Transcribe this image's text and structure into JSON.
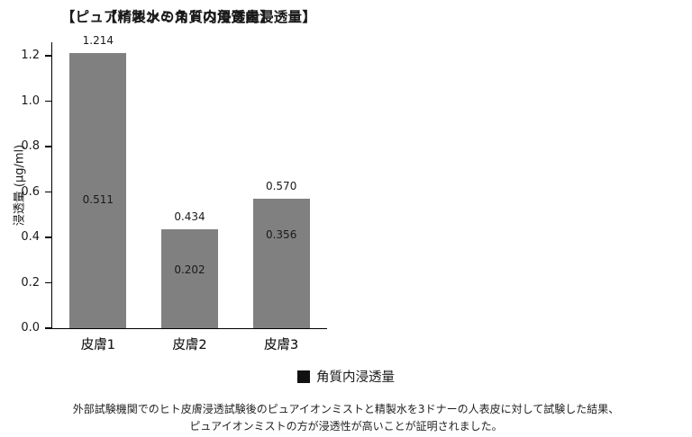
{
  "figure": {
    "background": "#ffffff",
    "bar_color": "#808080",
    "axis_color": "#000000",
    "text_color": "#1a1a1a"
  },
  "chart_data": [
    {
      "type": "bar",
      "title": "【ピュアイオンミストの角質内浸透量】",
      "categories": [
        "皮膚1",
        "皮膚2",
        "皮膚3"
      ],
      "values": [
        1.214,
        0.434,
        0.57
      ],
      "value_labels": [
        "1.214",
        "0.434",
        "0.570"
      ],
      "ylabel": "浸透量 (μg/ml)",
      "ylim": [
        0,
        1.26
      ],
      "yticks": [
        0.0,
        0.2,
        0.4,
        0.6,
        0.8,
        1.0,
        1.2
      ],
      "ytick_labels": [
        "0.0",
        "0.2",
        "0.4",
        "0.6",
        "0.8",
        "1.0",
        "1.2"
      ],
      "show_ytick_labels": true,
      "grid": false,
      "legend_position": "none",
      "bar_color": "#808080"
    },
    {
      "type": "bar",
      "title": "【精製水の角質内浸透量】",
      "categories": [
        "皮膚1",
        "皮膚2",
        "皮膚3"
      ],
      "values": [
        0.511,
        0.202,
        0.356
      ],
      "value_labels": [
        "0.511",
        "0.202",
        "0.356"
      ],
      "ylabel": "",
      "ylim": [
        0,
        1.26
      ],
      "yticks": [
        0.0,
        0.2,
        0.4,
        0.6,
        0.8,
        1.0,
        1.2
      ],
      "ytick_labels": [
        "0.0",
        "0.2",
        "0.4",
        "0.6",
        "0.8",
        "1.0",
        "1.2"
      ],
      "show_ytick_labels": false,
      "grid": false,
      "legend_position": "none",
      "bar_color": "#808080"
    }
  ],
  "legend": {
    "swatch_color": "#111111",
    "label": "角質内浸透量"
  },
  "caption": {
    "line1": "外部試験機関でのヒト皮膚浸透試験後のピュアイオンミストと精製水を3ドナーの人表皮に対して試験した結果、",
    "line2": "ピュアイオンミストの方が浸透性が高いことが証明されました。"
  }
}
